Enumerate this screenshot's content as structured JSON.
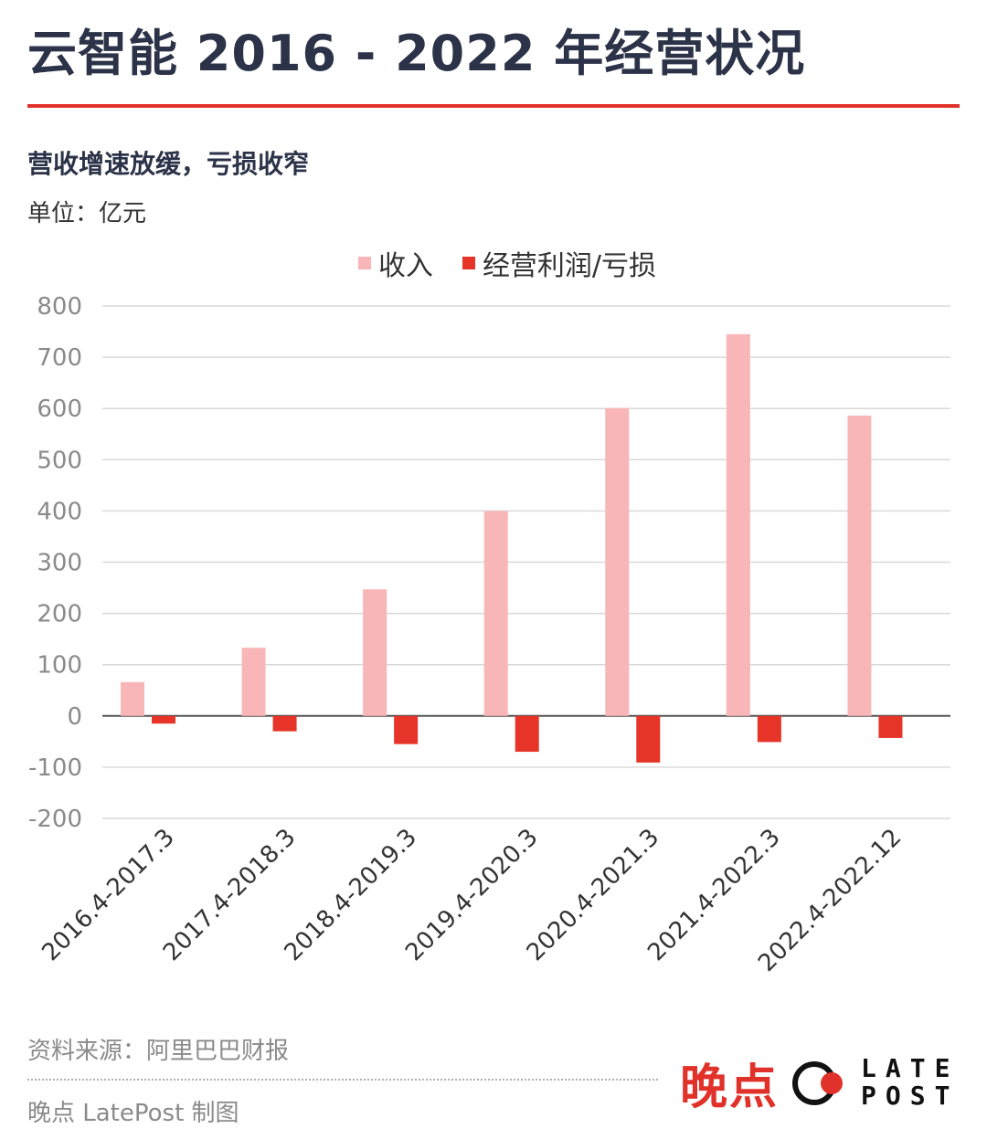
{
  "header": {
    "title": "云智能 2016 - 2022 年经营状况",
    "subtitle": "营收增速放缓，亏损收窄",
    "unit": "单位：亿元"
  },
  "footer": {
    "source": "资料来源：阿里巴巴财报",
    "credit": "晚点 LatePost 制图",
    "logo_cn": "晚点",
    "logo_latin_top": "LATE",
    "logo_latin_bottom": "POST"
  },
  "colors": {
    "revenue": "#f8b6b8",
    "profit": "#e63428",
    "accent": "#e0322a",
    "title": "#2c3348"
  },
  "chart_data": {
    "type": "bar",
    "categories": [
      "2016.4-2017.3",
      "2017.4-2018.3",
      "2018.4-2019.3",
      "2019.4-2020.3",
      "2020.4-2021.3",
      "2021.4-2022.3",
      "2022.4-2022.12"
    ],
    "series": [
      {
        "name": "收入",
        "values": [
          66,
          133,
          247,
          400,
          601,
          745,
          586
        ]
      },
      {
        "name": "经营利润/亏损",
        "values": [
          -15,
          -30,
          -55,
          -70,
          -91,
          -51,
          -43
        ]
      }
    ],
    "ylim": [
      -200,
      800
    ],
    "yticks": [
      800,
      700,
      600,
      500,
      400,
      300,
      200,
      100,
      0,
      -100,
      -200
    ],
    "grid": true,
    "legend_position": "top-center"
  }
}
